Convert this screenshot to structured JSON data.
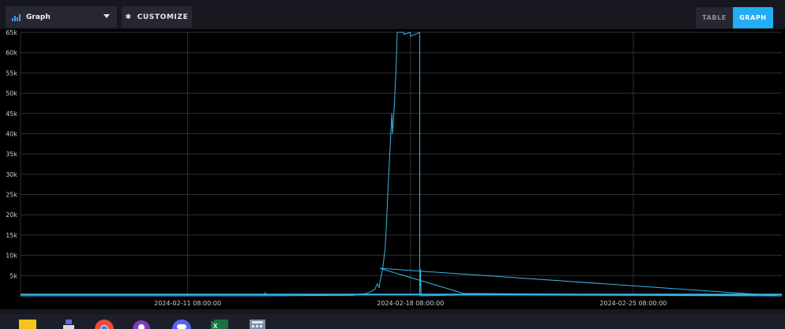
{
  "toolbar": {
    "view_select": {
      "label": "Graph",
      "icon": "graph-icon"
    },
    "customize_label": "CUSTOMIZE",
    "customize_icon": "gear-icon",
    "view_toggle": {
      "table_label": "TABLE",
      "graph_label": "GRAPH",
      "active": "graph"
    }
  },
  "colors": {
    "accent": "#22adf6",
    "series": "#3ab3e6",
    "grid": "#2c3038",
    "background": "#000000"
  },
  "chart_data": {
    "type": "line",
    "title": "",
    "xlabel": "",
    "ylabel": "",
    "ylim": [
      0,
      65000
    ],
    "y_ticks": [
      0,
      5000,
      10000,
      15000,
      20000,
      25000,
      30000,
      35000,
      40000,
      45000,
      50000,
      55000,
      60000,
      65000
    ],
    "y_tick_labels": [
      "",
      "5k",
      "10k",
      "15k",
      "20k",
      "25k",
      "30k",
      "35k",
      "40k",
      "45k",
      "50k",
      "55k",
      "60k",
      "65k"
    ],
    "x_range": [
      "2024-02-06 02:00:00",
      "2024-03-01 00:00:00"
    ],
    "x_tick_labels": [
      "2024-02-11 08:00:00",
      "2024-02-18 08:00:00",
      "2024-02-25 08:00:00"
    ],
    "x_tick_values": [
      "2024-02-11 08:00:00",
      "2024-02-18 08:00:00",
      "2024-02-25 08:00:00"
    ],
    "grid": true,
    "series": [
      {
        "x": [
          "2024-02-06 02:00:00",
          "2024-02-13 18:00:00",
          "2024-02-13 18:30:00",
          "2024-02-13 19:00:00",
          "2024-02-16 12:00:00",
          "2024-02-16 23:00:00",
          "2024-02-17 05:00:00",
          "2024-02-17 07:00:00",
          "2024-02-17 08:30:00",
          "2024-02-17 09:00:00",
          "2024-02-17 11:00:00",
          "2024-02-17 13:00:00",
          "2024-02-17 14:00:00",
          "2024-02-17 15:00:00",
          "2024-02-17 18:00:00",
          "2024-02-17 18:30:00",
          "2024-02-17 20:00:00",
          "2024-02-17 21:00:00",
          "2024-02-17 22:00:00",
          "2024-02-18 00:00:00",
          "2024-02-18 01:30:00",
          "2024-02-18 03:00:00",
          "2024-02-18 03:00:00",
          "2024-02-18 08:00:00",
          "2024-02-18 08:00:00",
          "2024-02-18 15:00:00",
          "2024-02-18 15:00:00",
          "2024-02-18 15:30:00",
          "2024-02-18 16:00:00",
          "2024-02-20 00:00:00",
          "2024-03-01 00:00:00"
        ],
        "y": [
          0,
          0,
          800,
          0,
          150,
          600,
          1500,
          3000,
          2000,
          3500,
          6500,
          12000,
          18000,
          26000,
          45000,
          40000,
          48000,
          55000,
          65000,
          65000,
          65000,
          65000,
          64500,
          65000,
          64000,
          65000,
          0,
          6500,
          0,
          300,
          0
        ]
      },
      {
        "x": [
          "2024-02-17 09:00:00",
          "2024-02-20 00:00:00",
          "2024-02-29 22:00:00"
        ],
        "y": [
          6800,
          600,
          0
        ]
      },
      {
        "x": [
          "2024-02-17 09:00:00",
          "2024-02-29 22:00:00"
        ],
        "y": [
          6800,
          0
        ]
      },
      {
        "x": [
          "2024-02-06 02:00:00",
          "2024-03-01 00:00:00"
        ],
        "y": [
          350,
          350
        ]
      }
    ]
  }
}
